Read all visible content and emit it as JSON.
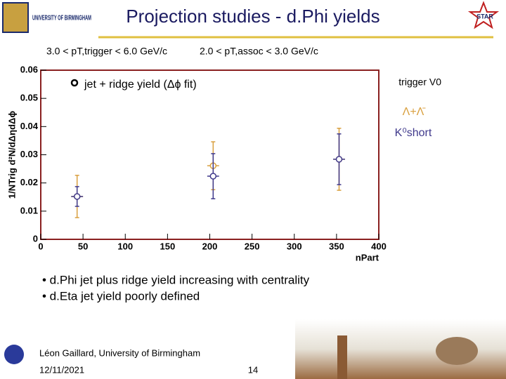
{
  "header": {
    "title": "Projection studies - d.Phi yields",
    "logo_text": "UNIVERSITY OF BIRMINGHAM",
    "star_text": "STAR",
    "cut_trigger": "3.0 < pT,trigger < 6.0 GeV/c",
    "cut_assoc": "2.0 < pT,assoc < 3.0 GeV/c"
  },
  "chart_data": {
    "type": "scatter",
    "annotation": "jet + ridge yield (Δϕ fit)",
    "legend_title": "trigger V0",
    "x_label": "nPart",
    "y_label": "1/NTrig d²N/dΔηdΔϕ",
    "xlim": [
      0,
      400
    ],
    "xticks": [
      0,
      50,
      100,
      150,
      200,
      250,
      300,
      350,
      400
    ],
    "ylim": [
      0,
      0.06
    ],
    "yticks": [
      0,
      0.01,
      0.02,
      0.03,
      0.04,
      0.05,
      0.06
    ],
    "series": [
      {
        "name": "Λ+Λ̄",
        "color": "#d9a040",
        "x": [
          43,
          204,
          353
        ],
        "values": [
          0.0152,
          0.0261,
          0.0284
        ],
        "errors": [
          0.0075,
          0.0085,
          0.011
        ],
        "x_errors": [
          7,
          7,
          7
        ]
      },
      {
        "name": "K⁰short",
        "color": "#403a8c",
        "x": [
          43,
          204,
          353
        ],
        "values": [
          0.0152,
          0.0224,
          0.0284
        ],
        "errors": [
          0.0035,
          0.008,
          0.009
        ],
        "x_errors": [
          7,
          7,
          7
        ]
      }
    ]
  },
  "bullets": [
    "• d.Phi jet plus ridge yield increasing with centrality",
    "• d.Eta jet yield poorly defined"
  ],
  "footer": {
    "author": "Léon Gaillard, University of Birmingham",
    "date": "12/11/2021",
    "page": "14"
  }
}
